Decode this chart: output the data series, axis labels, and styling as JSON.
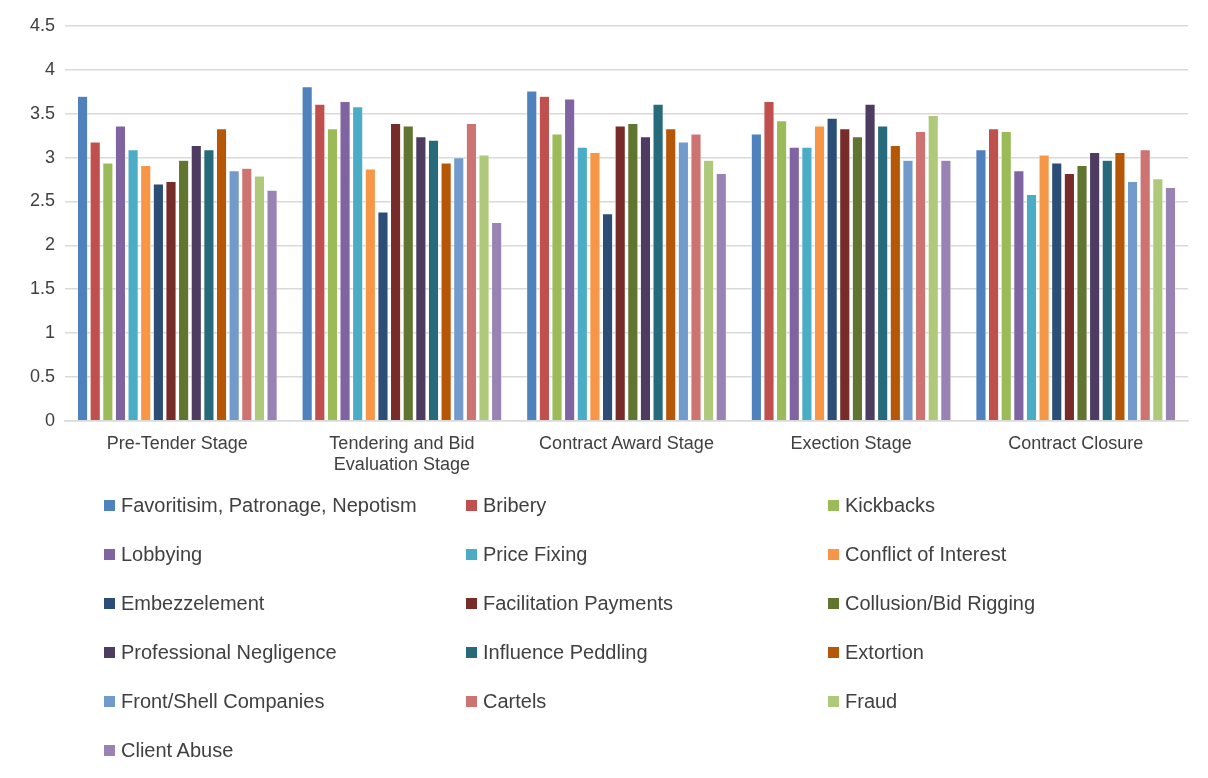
{
  "chart_data": {
    "type": "bar",
    "categories": [
      "Pre-Tender Stage",
      "Tendering and Bid Evaluation Stage",
      "Contract Award Stage",
      "Exection Stage",
      "Contract Closure"
    ],
    "series": [
      {
        "name": "Favoritisim, Patronage, Nepotism",
        "color": "#4f81bd",
        "values": [
          3.7,
          3.81,
          3.76,
          3.27,
          3.09
        ]
      },
      {
        "name": "Bribery",
        "color": "#c0504d",
        "values": [
          3.18,
          3.61,
          3.7,
          3.64,
          3.33
        ]
      },
      {
        "name": "Kickbacks",
        "color": "#9bbb59",
        "values": [
          2.94,
          3.33,
          3.27,
          3.42,
          3.3
        ]
      },
      {
        "name": "Lobbying",
        "color": "#8064a2",
        "values": [
          3.36,
          3.64,
          3.67,
          3.12,
          2.85
        ]
      },
      {
        "name": "Price Fixing",
        "color": "#4bacc6",
        "values": [
          3.09,
          3.58,
          3.12,
          3.12,
          2.58
        ]
      },
      {
        "name": "Conflict of Interest",
        "color": "#f79646",
        "values": [
          2.91,
          2.87,
          3.06,
          3.36,
          3.03
        ]
      },
      {
        "name": "Embezzelement",
        "color": "#2c4d75",
        "values": [
          2.7,
          2.38,
          2.36,
          3.45,
          2.94
        ]
      },
      {
        "name": "Facilitation Payments",
        "color": "#772c2a",
        "values": [
          2.73,
          3.39,
          3.36,
          3.33,
          2.82
        ]
      },
      {
        "name": "Collusion/Bid Rigging",
        "color": "#5f7530",
        "values": [
          2.97,
          3.36,
          3.39,
          3.24,
          2.91
        ]
      },
      {
        "name": "Professional Negligence",
        "color": "#4d3b62",
        "values": [
          3.14,
          3.24,
          3.24,
          3.61,
          3.06
        ]
      },
      {
        "name": "Influence Peddling",
        "color": "#276a7c",
        "values": [
          3.09,
          3.2,
          3.61,
          3.36,
          2.97
        ]
      },
      {
        "name": "Extortion",
        "color": "#b65708",
        "values": [
          3.33,
          2.94,
          3.33,
          3.14,
          3.06
        ]
      },
      {
        "name": "Front/Shell Companies",
        "color": "#729aca",
        "values": [
          2.85,
          3.0,
          3.18,
          2.97,
          2.73
        ]
      },
      {
        "name": "Cartels",
        "color": "#cd7371",
        "values": [
          2.88,
          3.39,
          3.27,
          3.3,
          3.09
        ]
      },
      {
        "name": "Fraud",
        "color": "#afc97a",
        "values": [
          2.79,
          3.03,
          2.97,
          3.48,
          2.76
        ]
      },
      {
        "name": "Client Abuse",
        "color": "#9983b5",
        "values": [
          2.63,
          2.26,
          2.82,
          2.97,
          2.66
        ]
      }
    ],
    "ylim": [
      0,
      4.5
    ],
    "yticks": [
      0,
      0.5,
      1,
      1.5,
      2,
      2.5,
      3,
      3.5,
      4,
      4.5
    ],
    "grid": "y",
    "legend": "bottom"
  }
}
